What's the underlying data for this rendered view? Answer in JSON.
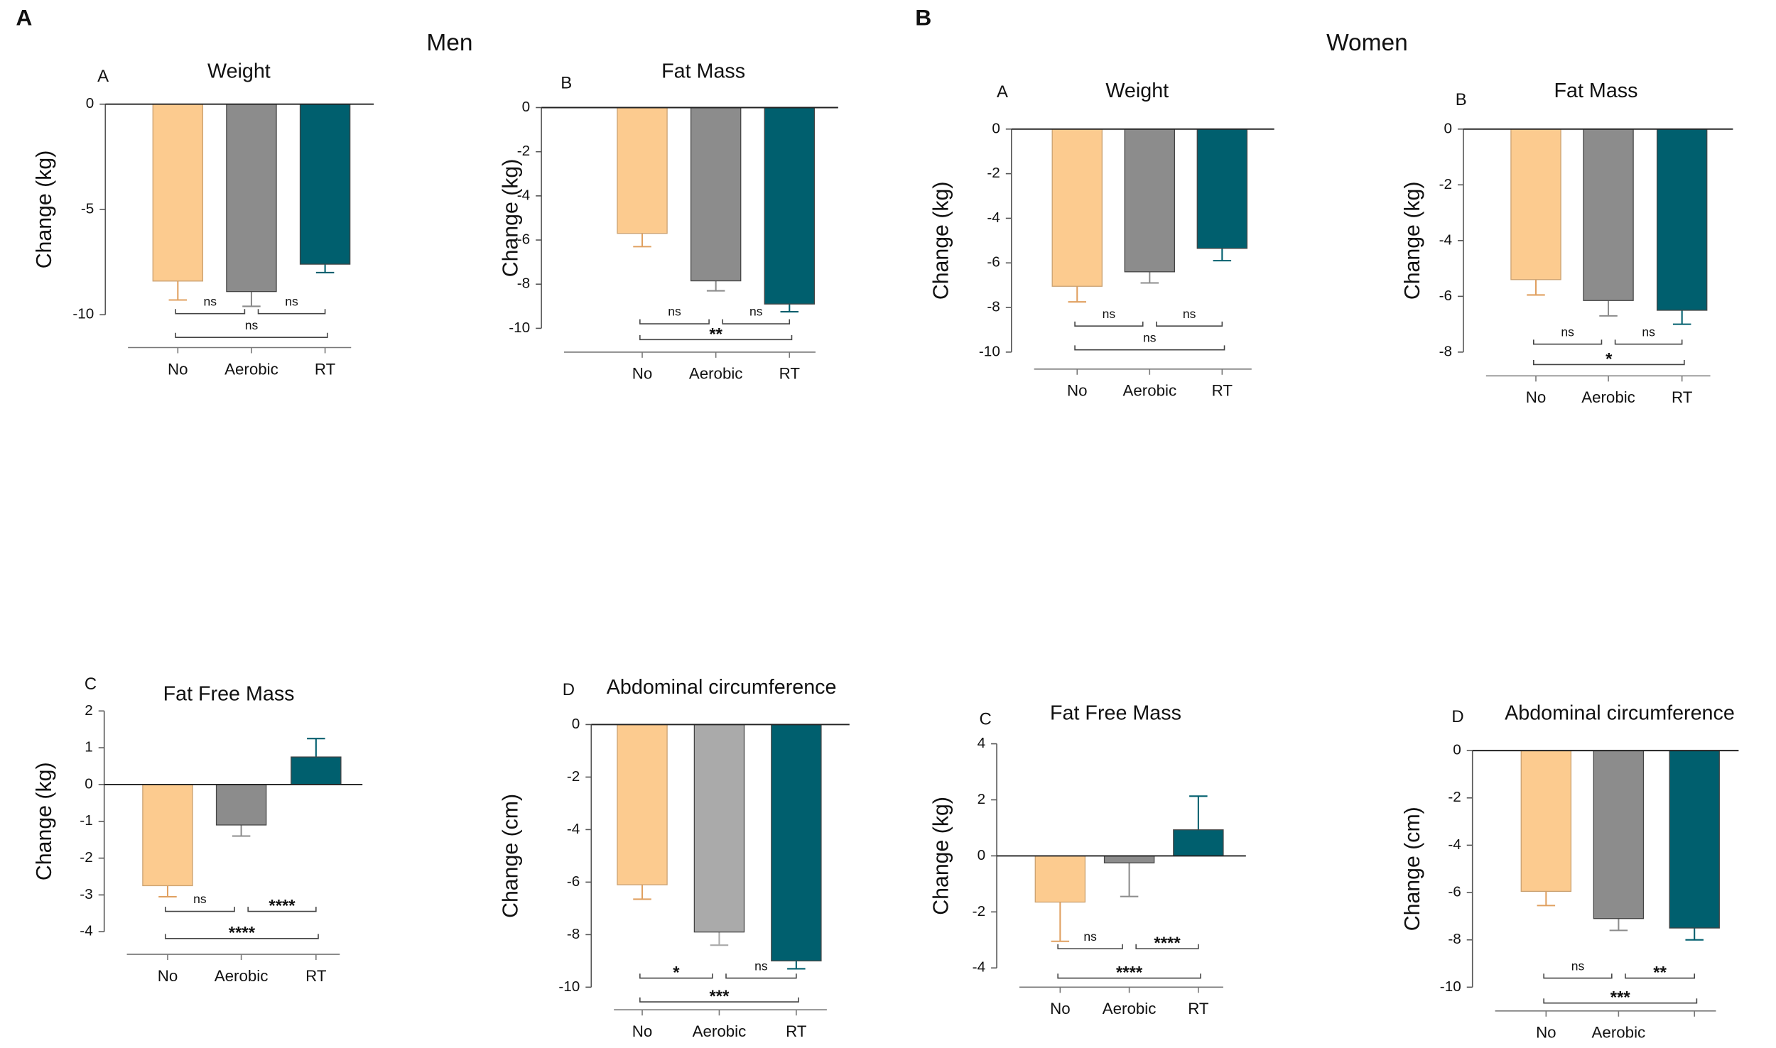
{
  "figure": {
    "panels": [
      {
        "label": "A",
        "title": "Men"
      },
      {
        "label": "B",
        "title": "Women"
      }
    ]
  },
  "chart_data": [
    {
      "type": "bar",
      "panel_label": "A",
      "title": "Weight",
      "y_label": "Change (kg)",
      "categories": [
        "No",
        "Aerobic",
        "RT"
      ],
      "values": [
        -8.4,
        -8.9,
        -7.6
      ],
      "errors": [
        0.9,
        0.7,
        0.4
      ],
      "colors": [
        "#fccb8f",
        "#8c8c8c",
        "#005f6e"
      ],
      "ylim": [
        -10,
        0
      ],
      "yticks": [
        0,
        -5,
        -10
      ],
      "comparisons": [
        "ns",
        "ns",
        "ns"
      ]
    },
    {
      "type": "bar",
      "panel_label": "B",
      "title": "Fat Mass",
      "y_label": "Change (kg)",
      "categories": [
        "No",
        "Aerobic",
        "RT"
      ],
      "values": [
        -5.7,
        -7.85,
        -8.9
      ],
      "errors": [
        0.6,
        0.45,
        0.35
      ],
      "colors": [
        "#fccb8f",
        "#8c8c8c",
        "#005f6e"
      ],
      "ylim": [
        -10,
        0
      ],
      "yticks": [
        0,
        -2,
        -4,
        -6,
        -8,
        -10
      ],
      "comparisons": [
        "ns",
        "ns",
        "**"
      ]
    },
    {
      "type": "bar",
      "panel_label": "C",
      "title": "Fat Free Mass",
      "y_label": "Change (kg)",
      "categories": [
        "No",
        "Aerobic",
        "RT"
      ],
      "values": [
        -2.75,
        -1.1,
        0.75
      ],
      "errors": [
        0.3,
        0.3,
        0.5
      ],
      "colors": [
        "#fccb8f",
        "#8c8c8c",
        "#005f6e"
      ],
      "ylim": [
        -4,
        2
      ],
      "yticks": [
        2,
        1,
        0,
        -1,
        -2,
        -3,
        -4
      ],
      "comparisons": [
        "ns",
        "****",
        "****"
      ]
    },
    {
      "type": "bar",
      "panel_label": "D",
      "title": "Abdominal circumference",
      "y_label": "Change (cm)",
      "categories": [
        "No",
        "Aerobic",
        "RT"
      ],
      "values": [
        -6.1,
        -7.9,
        -9.0
      ],
      "errors": [
        0.55,
        0.5,
        0.3
      ],
      "colors": [
        "#fccb8f",
        "#aaaaaa",
        "#005f6e"
      ],
      "ylim": [
        -10,
        0
      ],
      "yticks": [
        0,
        -2,
        -4,
        -6,
        -8,
        -10
      ],
      "comparisons": [
        "*",
        "ns",
        "***"
      ]
    },
    {
      "type": "bar",
      "panel_label": "A",
      "title": "Weight",
      "y_label": "Change (kg)",
      "categories": [
        "No",
        "Aerobic",
        "RT"
      ],
      "values": [
        -7.05,
        -6.4,
        -5.35
      ],
      "errors": [
        0.7,
        0.5,
        0.55
      ],
      "colors": [
        "#fccb8f",
        "#8c8c8c",
        "#005f6e"
      ],
      "ylim": [
        -10,
        0
      ],
      "yticks": [
        0,
        -2,
        -4,
        -6,
        -8,
        -10
      ],
      "comparisons": [
        "ns",
        "ns",
        "ns"
      ]
    },
    {
      "type": "bar",
      "panel_label": "B",
      "title": "Fat Mass",
      "y_label": "Change (kg)",
      "categories": [
        "No",
        "Aerobic",
        "RT"
      ],
      "values": [
        -5.4,
        -6.15,
        -6.5
      ],
      "errors": [
        0.55,
        0.55,
        0.5
      ],
      "colors": [
        "#fccb8f",
        "#8c8c8c",
        "#005f6e"
      ],
      "ylim": [
        -8,
        0
      ],
      "yticks": [
        0,
        -2,
        -4,
        -6,
        -8
      ],
      "comparisons": [
        "ns",
        "ns",
        "*"
      ]
    },
    {
      "type": "bar",
      "panel_label": "C",
      "title": "Fat Free Mass",
      "y_label": "Change (kg)",
      "categories": [
        "No",
        "Aerobic",
        "RT"
      ],
      "values": [
        -1.65,
        -0.25,
        0.93
      ],
      "errors": [
        1.4,
        1.2,
        1.2
      ],
      "colors": [
        "#fccb8f",
        "#8c8c8c",
        "#005f6e"
      ],
      "ylim": [
        -4,
        4
      ],
      "yticks": [
        4,
        2,
        0,
        -2,
        -4
      ],
      "comparisons": [
        "ns",
        "****",
        "****"
      ]
    },
    {
      "type": "bar",
      "panel_label": "D",
      "title": "Abdominal circumference",
      "y_label": "Change (cm)",
      "categories": [
        "No",
        "Aerobic",
        null
      ],
      "values": [
        -5.95,
        -7.1,
        -7.5
      ],
      "errors": [
        0.6,
        0.5,
        0.5
      ],
      "colors": [
        "#fccb8f",
        "#8c8c8c",
        "#005f6e"
      ],
      "ylim": [
        -10,
        0
      ],
      "yticks": [
        0,
        -2,
        -4,
        -6,
        -8,
        -10
      ],
      "comparisons": [
        "ns",
        "**",
        "***"
      ]
    }
  ]
}
